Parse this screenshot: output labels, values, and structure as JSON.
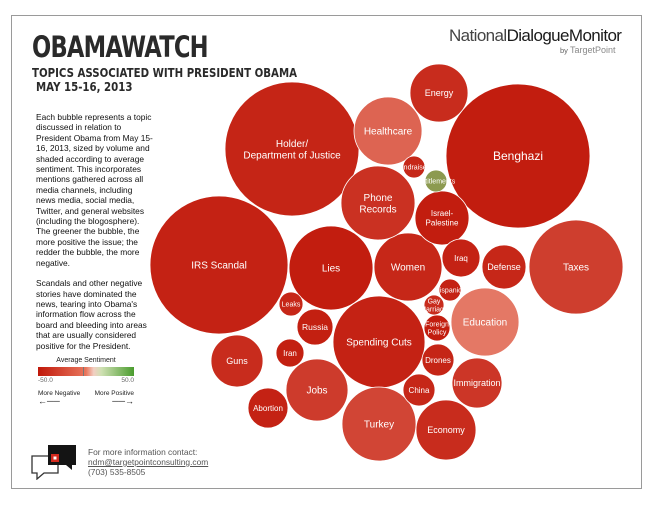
{
  "header": {
    "title": "OBAMAWATCH",
    "subtitle": "TOPICS ASSOCIATED WITH PRESIDENT OBAMA",
    "date": "MAY 15-16, 2013"
  },
  "brand": {
    "name_part1": "National",
    "name_part2": "DialogueMonitor",
    "by": "by",
    "partner": "TargetPoint"
  },
  "description": {
    "p1": "Each bubble represents a topic discussed in relation to President Obama from May 15-16, 2013, sized by volume and shaded according to average sentiment. This incorporates mentions gathered across all media channels, including news media, social media, Twitter, and general websites (including the blogosphere). The greener the bubble, the more positive the issue; the redder the bubble, the more negative.",
    "p2": "Scandals and other negative stories have dominated the news, tearing into Obama's information flow across the board and bleeding into areas that are usually considered positive for the President."
  },
  "legend": {
    "title": "Average Sentiment",
    "min_label": "-50.0",
    "max_label": "50.0",
    "negative_label": "More Negative",
    "positive_label": "More Positive",
    "negative_color": "#c0180a",
    "positive_color": "#4a9c2e"
  },
  "contact": {
    "line1": "For more information contact:",
    "email": "ndm@targetpointconsulting.com",
    "phone": "(703) 535-8505"
  },
  "chart_data": {
    "type": "bubble",
    "sentiment_range": [
      -50,
      50
    ],
    "bubbles": [
      {
        "label": "Benghazi",
        "sentiment": -48
      },
      {
        "label": "Holder/\nDepartment of Justice",
        "sentiment": -45
      },
      {
        "label": "IRS Scandal",
        "sentiment": -46
      },
      {
        "label": "Taxes",
        "sentiment": -35
      },
      {
        "label": "Spending Cuts",
        "sentiment": -46
      },
      {
        "label": "Lies",
        "sentiment": -48
      },
      {
        "label": "Women",
        "sentiment": -44
      },
      {
        "label": "Turkey",
        "sentiment": -32
      },
      {
        "label": "Education",
        "sentiment": -12
      },
      {
        "label": "Healthcare",
        "sentiment": -20
      },
      {
        "label": "Phone\nRecords",
        "sentiment": -40
      },
      {
        "label": "Jobs",
        "sentiment": -36
      },
      {
        "label": "Energy",
        "sentiment": -42
      },
      {
        "label": "Economy",
        "sentiment": -42
      },
      {
        "label": "Guns",
        "sentiment": -42
      },
      {
        "label": "Israel-\nPalestine",
        "sentiment": -48
      },
      {
        "label": "Immigration",
        "sentiment": -38
      },
      {
        "label": "Defense",
        "sentiment": -44
      },
      {
        "label": "Abortion",
        "sentiment": -46
      },
      {
        "label": "Iraq",
        "sentiment": -46
      },
      {
        "label": "Russia",
        "sentiment": -47
      },
      {
        "label": "China",
        "sentiment": -44
      },
      {
        "label": "Drones",
        "sentiment": -45
      },
      {
        "label": "Iran",
        "sentiment": -47
      },
      {
        "label": "Foreign\nPolicy",
        "sentiment": -48
      },
      {
        "label": "Leaks",
        "sentiment": -44
      },
      {
        "label": "Fundraisers",
        "sentiment": -44
      },
      {
        "label": "Hispanics",
        "sentiment": -46
      },
      {
        "label": "Gay\nMarriage",
        "sentiment": -42
      },
      {
        "label": "Entitlements",
        "sentiment": 30
      }
    ]
  }
}
